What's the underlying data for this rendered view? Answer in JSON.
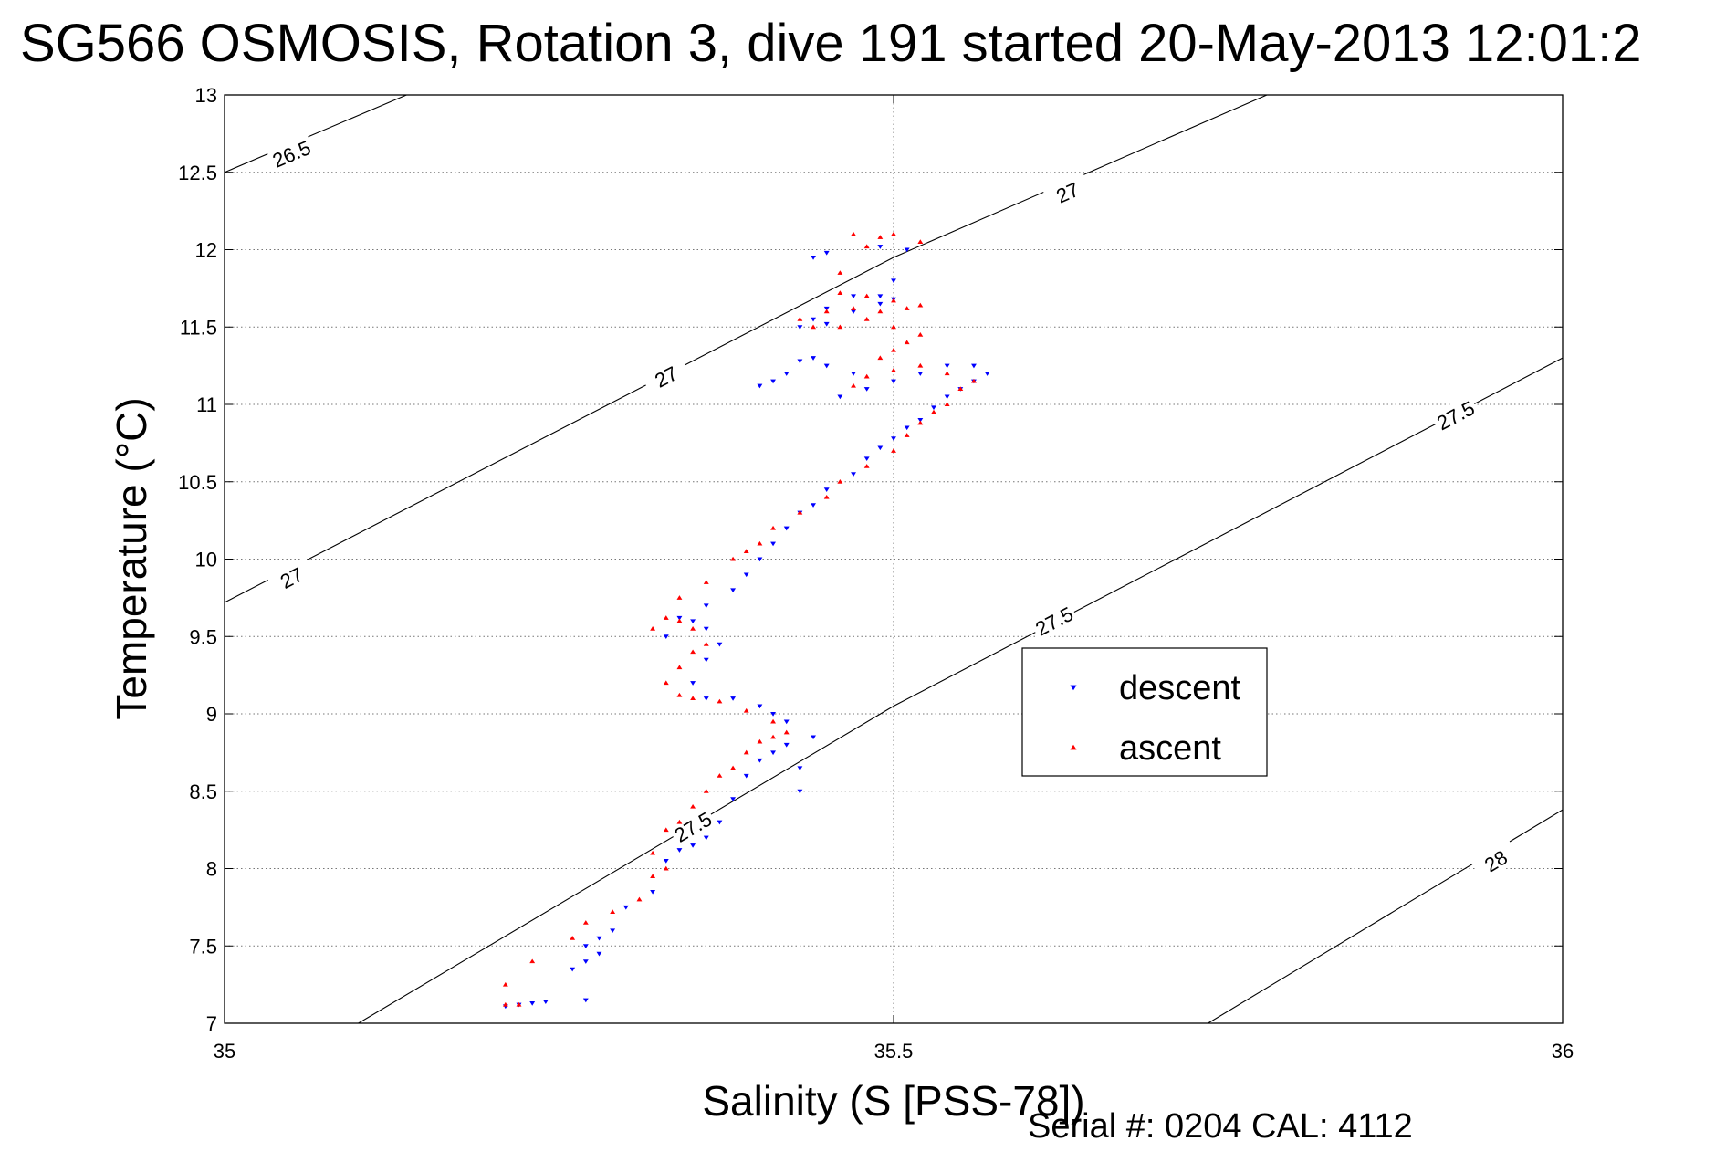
{
  "chart_data": {
    "type": "scatter",
    "title": "SG566 OSMOSIS, Rotation 3, dive 191 started 20-May-2013 12:01:2",
    "xlabel": "Salinity (S [PSS-78])",
    "ylabel": "Temperature (°C)",
    "xlim": [
      35,
      36
    ],
    "ylim": [
      7,
      13
    ],
    "xticks": [
      35,
      35.5,
      36
    ],
    "xtick_labels": [
      "35",
      "35.5",
      "36"
    ],
    "yticks": [
      7,
      7.5,
      8,
      8.5,
      9,
      9.5,
      10,
      10.5,
      11,
      11.5,
      12,
      12.5,
      13
    ],
    "ytick_labels": [
      "7",
      "7.5",
      "8",
      "8.5",
      "9",
      "9.5",
      "10",
      "10.5",
      "11",
      "11.5",
      "12",
      "12.5",
      "13"
    ],
    "grid": true,
    "legend_position": "right-center",
    "footnote": "Serial #: 0204  CAL: 4112",
    "density_contours": [
      {
        "label": "26.5",
        "points": [
          [
            35.0,
            12.5
          ],
          [
            35.136,
            13.0
          ]
        ],
        "label_at": [
          [
            35.05,
            12.62
          ]
        ]
      },
      {
        "label": "27",
        "points": [
          [
            35.0,
            9.72
          ],
          [
            35.5,
            11.95
          ],
          [
            35.779,
            13.0
          ]
        ],
        "label_at": [
          [
            35.05,
            9.88
          ],
          [
            35.33,
            11.18
          ],
          [
            35.63,
            12.37
          ]
        ]
      },
      {
        "label": "27.5",
        "points": [
          [
            35.1,
            7.0
          ],
          [
            35.5,
            9.05
          ],
          [
            36.0,
            11.3
          ]
        ],
        "label_at": [
          [
            35.35,
            8.27
          ],
          [
            35.62,
            9.6
          ],
          [
            35.92,
            10.93
          ]
        ]
      },
      {
        "label": "28",
        "points": [
          [
            35.735,
            7.0
          ],
          [
            36.0,
            8.38
          ]
        ],
        "label_at": [
          [
            35.95,
            8.05
          ]
        ]
      }
    ],
    "series": [
      {
        "name": "descent",
        "color": "#0000ff",
        "marker": "triangle-down",
        "points": [
          [
            35.21,
            7.11
          ],
          [
            35.22,
            7.12
          ],
          [
            35.23,
            7.13
          ],
          [
            35.24,
            7.14
          ],
          [
            35.27,
            7.15
          ],
          [
            35.26,
            7.35
          ],
          [
            35.27,
            7.4
          ],
          [
            35.28,
            7.45
          ],
          [
            35.27,
            7.5
          ],
          [
            35.28,
            7.55
          ],
          [
            35.29,
            7.6
          ],
          [
            35.3,
            7.75
          ],
          [
            35.32,
            7.85
          ],
          [
            35.33,
            8.05
          ],
          [
            35.34,
            8.12
          ],
          [
            35.35,
            8.15
          ],
          [
            35.36,
            8.2
          ],
          [
            35.37,
            8.3
          ],
          [
            35.38,
            8.45
          ],
          [
            35.39,
            8.6
          ],
          [
            35.4,
            8.7
          ],
          [
            35.41,
            8.75
          ],
          [
            35.42,
            8.8
          ],
          [
            35.43,
            8.5
          ],
          [
            35.43,
            8.65
          ],
          [
            35.44,
            8.85
          ],
          [
            35.42,
            8.95
          ],
          [
            35.41,
            9.0
          ],
          [
            35.4,
            9.05
          ],
          [
            35.38,
            9.1
          ],
          [
            35.36,
            9.1
          ],
          [
            35.35,
            9.2
          ],
          [
            35.36,
            9.35
          ],
          [
            35.37,
            9.45
          ],
          [
            35.36,
            9.55
          ],
          [
            35.35,
            9.6
          ],
          [
            35.34,
            9.62
          ],
          [
            35.33,
            9.5
          ],
          [
            35.36,
            9.7
          ],
          [
            35.38,
            9.8
          ],
          [
            35.39,
            9.9
          ],
          [
            35.4,
            10.0
          ],
          [
            35.41,
            10.1
          ],
          [
            35.42,
            10.2
          ],
          [
            35.43,
            10.3
          ],
          [
            35.44,
            10.35
          ],
          [
            35.45,
            10.45
          ],
          [
            35.47,
            10.55
          ],
          [
            35.48,
            10.65
          ],
          [
            35.49,
            10.72
          ],
          [
            35.5,
            10.78
          ],
          [
            35.51,
            10.85
          ],
          [
            35.52,
            10.9
          ],
          [
            35.53,
            10.98
          ],
          [
            35.54,
            11.05
          ],
          [
            35.55,
            11.1
          ],
          [
            35.56,
            11.15
          ],
          [
            35.57,
            11.2
          ],
          [
            35.56,
            11.25
          ],
          [
            35.54,
            11.25
          ],
          [
            35.52,
            11.2
          ],
          [
            35.5,
            11.15
          ],
          [
            35.48,
            11.1
          ],
          [
            35.46,
            11.05
          ],
          [
            35.47,
            11.2
          ],
          [
            35.45,
            11.25
          ],
          [
            35.44,
            11.3
          ],
          [
            35.43,
            11.28
          ],
          [
            35.42,
            11.2
          ],
          [
            35.41,
            11.15
          ],
          [
            35.4,
            11.12
          ],
          [
            35.45,
            11.52
          ],
          [
            35.47,
            11.6
          ],
          [
            35.49,
            11.65
          ],
          [
            35.5,
            11.68
          ],
          [
            35.49,
            11.7
          ],
          [
            35.47,
            11.7
          ],
          [
            35.45,
            11.62
          ],
          [
            35.44,
            11.55
          ],
          [
            35.43,
            11.5
          ],
          [
            35.5,
            11.8
          ],
          [
            35.51,
            12.0
          ],
          [
            35.49,
            12.02
          ],
          [
            35.45,
            11.98
          ],
          [
            35.44,
            11.95
          ]
        ]
      },
      {
        "name": "ascent",
        "color": "#ff0000",
        "marker": "triangle-up",
        "points": [
          [
            35.21,
            7.12
          ],
          [
            35.22,
            7.12
          ],
          [
            35.21,
            7.25
          ],
          [
            35.23,
            7.4
          ],
          [
            35.26,
            7.55
          ],
          [
            35.27,
            7.65
          ],
          [
            35.29,
            7.72
          ],
          [
            35.31,
            7.8
          ],
          [
            35.32,
            7.95
          ],
          [
            35.33,
            8.0
          ],
          [
            35.32,
            8.1
          ],
          [
            35.33,
            8.25
          ],
          [
            35.34,
            8.3
          ],
          [
            35.35,
            8.4
          ],
          [
            35.36,
            8.5
          ],
          [
            35.37,
            8.6
          ],
          [
            35.38,
            8.65
          ],
          [
            35.39,
            8.75
          ],
          [
            35.4,
            8.82
          ],
          [
            35.41,
            8.85
          ],
          [
            35.42,
            8.88
          ],
          [
            35.41,
            8.95
          ],
          [
            35.39,
            9.02
          ],
          [
            35.37,
            9.08
          ],
          [
            35.35,
            9.1
          ],
          [
            35.34,
            9.12
          ],
          [
            35.33,
            9.2
          ],
          [
            35.34,
            9.3
          ],
          [
            35.35,
            9.4
          ],
          [
            35.36,
            9.45
          ],
          [
            35.35,
            9.55
          ],
          [
            35.34,
            9.6
          ],
          [
            35.33,
            9.62
          ],
          [
            35.32,
            9.55
          ],
          [
            35.34,
            9.75
          ],
          [
            35.36,
            9.85
          ],
          [
            35.38,
            10.0
          ],
          [
            35.39,
            10.05
          ],
          [
            35.4,
            10.1
          ],
          [
            35.41,
            10.2
          ],
          [
            35.43,
            10.3
          ],
          [
            35.45,
            10.4
          ],
          [
            35.46,
            10.5
          ],
          [
            35.48,
            10.6
          ],
          [
            35.5,
            10.7
          ],
          [
            35.51,
            10.8
          ],
          [
            35.52,
            10.88
          ],
          [
            35.53,
            10.95
          ],
          [
            35.54,
            11.0
          ],
          [
            35.55,
            11.1
          ],
          [
            35.56,
            11.15
          ],
          [
            35.54,
            11.2
          ],
          [
            35.52,
            11.25
          ],
          [
            35.5,
            11.22
          ],
          [
            35.48,
            11.18
          ],
          [
            35.47,
            11.12
          ],
          [
            35.49,
            11.3
          ],
          [
            35.5,
            11.35
          ],
          [
            35.51,
            11.4
          ],
          [
            35.52,
            11.45
          ],
          [
            35.5,
            11.5
          ],
          [
            35.48,
            11.55
          ],
          [
            35.46,
            11.5
          ],
          [
            35.44,
            11.5
          ],
          [
            35.43,
            11.55
          ],
          [
            35.45,
            11.6
          ],
          [
            35.47,
            11.62
          ],
          [
            35.49,
            11.6
          ],
          [
            35.51,
            11.62
          ],
          [
            35.52,
            11.64
          ],
          [
            35.5,
            11.67
          ],
          [
            35.48,
            11.7
          ],
          [
            35.46,
            11.72
          ],
          [
            35.46,
            11.85
          ],
          [
            35.48,
            12.02
          ],
          [
            35.49,
            12.08
          ],
          [
            35.5,
            12.1
          ],
          [
            35.52,
            12.05
          ],
          [
            35.47,
            12.1
          ]
        ]
      }
    ]
  }
}
